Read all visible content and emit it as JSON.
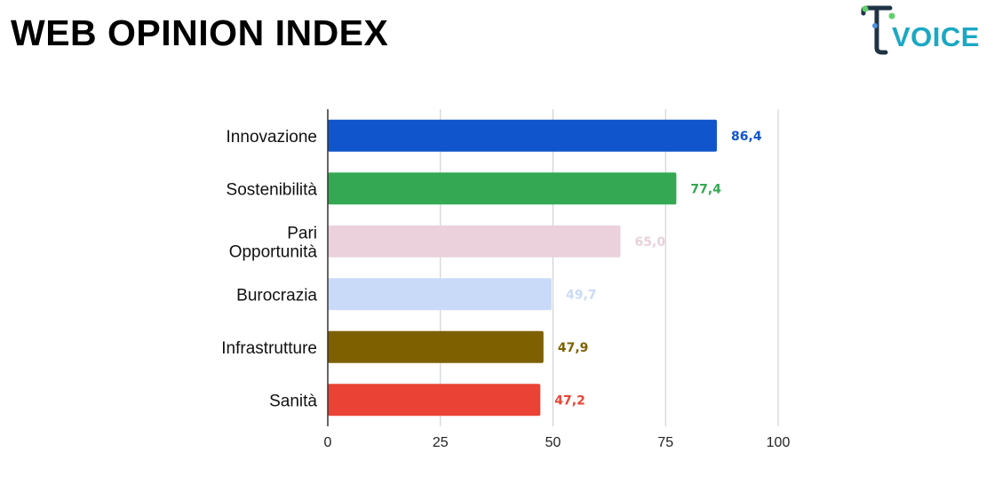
{
  "header": {
    "title": "WEB OPINION INDEX",
    "logo_text": "VOICE"
  },
  "chart_data": {
    "type": "bar",
    "orientation": "horizontal",
    "title": "",
    "xlabel": "",
    "ylabel": "",
    "xlim": [
      0,
      100
    ],
    "ticks": [
      0,
      25,
      50,
      75,
      100
    ],
    "grid": true,
    "categories": [
      [
        "Innovazione"
      ],
      [
        "Sostenibilità"
      ],
      [
        "Pari",
        "Opportunità"
      ],
      [
        "Burocrazia"
      ],
      [
        "Infrastrutture"
      ],
      [
        "Sanità"
      ]
    ],
    "values": [
      86.4,
      77.4,
      65.0,
      49.7,
      47.9,
      47.2
    ],
    "value_labels": [
      "86,4",
      "77,4",
      "65,0",
      "49,7",
      "47,9",
      "47,2"
    ],
    "colors": [
      "#1155cc",
      "#34a853",
      "#ead1dc",
      "#c9daf8",
      "#7f6000",
      "#ea4335"
    ],
    "label_colors": [
      "#1155cc",
      "#34a853",
      "#ead1dc",
      "#c9daf8",
      "#7f6000",
      "#ea4335"
    ]
  },
  "logo_colors": {
    "dark": "#1f3344",
    "accent_green": "#5fd06a",
    "accent_blue": "#4a90e2",
    "accent_teal": "#1aa8c4"
  }
}
